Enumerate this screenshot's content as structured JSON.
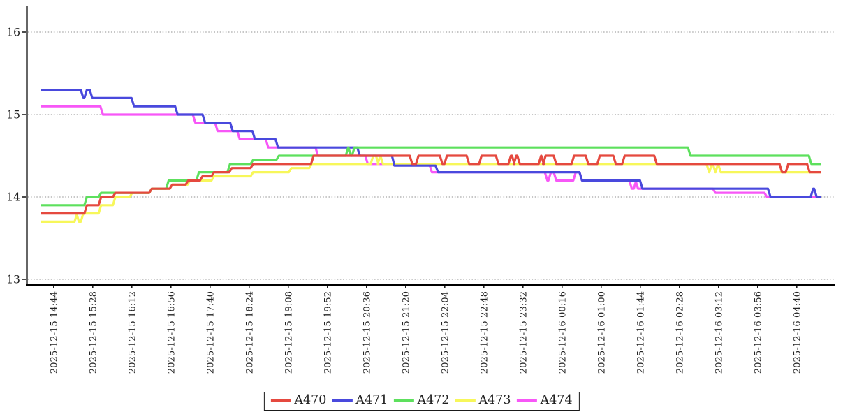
{
  "chart_data": {
    "type": "line",
    "title": "",
    "x_unit": "minutes since first sample (~2025-12-15 14:30)",
    "x_axis": {
      "tick_minutes": [
        14,
        58,
        102,
        146,
        190,
        234,
        278,
        322,
        366,
        410,
        454,
        498,
        542,
        586,
        630,
        674,
        718,
        762,
        806,
        850
      ],
      "tick_labels": [
        "2025-12-15 14:44",
        "2025-12-15 15:28",
        "2025-12-15 16:12",
        "2025-12-15 16:56",
        "2025-12-15 17:40",
        "2025-12-15 18:24",
        "2025-12-15 19:08",
        "2025-12-15 19:52",
        "2025-12-15 20:36",
        "2025-12-15 21:20",
        "2025-12-15 22:04",
        "2025-12-15 22:48",
        "2025-12-15 23:32",
        "2025-12-16 00:16",
        "2025-12-16 01:00",
        "2025-12-16 01:44",
        "2025-12-16 02:28",
        "2025-12-16 03:12",
        "2025-12-16 03:56",
        "2025-12-16 04:40"
      ]
    },
    "y_axis": {
      "ticks": [
        16,
        15,
        14,
        13
      ],
      "min": 12.94,
      "max": 16.31,
      "grid": "dashed"
    },
    "legend_position": "bottom-center",
    "end_minute": 877,
    "draw_order": [
      "A474",
      "A473",
      "A471",
      "A472",
      "A470"
    ],
    "series": [
      {
        "name": "A470",
        "color": "#e5493f",
        "points": [
          [
            0,
            13.8
          ],
          [
            50,
            13.9
          ],
          [
            66,
            14.0
          ],
          [
            82,
            14.05
          ],
          [
            123,
            14.1
          ],
          [
            146,
            14.15
          ],
          [
            164,
            14.2
          ],
          [
            180,
            14.25
          ],
          [
            193,
            14.3
          ],
          [
            213,
            14.35
          ],
          [
            237,
            14.4
          ],
          [
            305,
            14.5
          ],
          [
            416,
            14.4
          ],
          [
            423,
            14.5
          ],
          [
            450,
            14.4
          ],
          [
            455,
            14.5
          ],
          [
            480,
            14.4
          ],
          [
            494,
            14.5
          ],
          [
            513,
            14.4
          ],
          [
            527,
            14.5
          ],
          [
            531,
            14.4
          ],
          [
            533,
            14.5
          ],
          [
            537,
            14.4
          ],
          [
            561,
            14.5
          ],
          [
            564,
            14.4
          ],
          [
            566,
            14.5
          ],
          [
            578,
            14.4
          ],
          [
            598,
            14.5
          ],
          [
            614,
            14.4
          ],
          [
            627,
            14.5
          ],
          [
            645,
            14.4
          ],
          [
            655,
            14.5
          ],
          [
            691,
            14.4
          ],
          [
            832,
            14.3
          ],
          [
            839,
            14.4
          ],
          [
            863,
            14.3
          ]
        ]
      },
      {
        "name": "A471",
        "color": "#4949dd",
        "points": [
          [
            0,
            15.3
          ],
          [
            46,
            15.2
          ],
          [
            50,
            15.3
          ],
          [
            56,
            15.2
          ],
          [
            103,
            15.1
          ],
          [
            152,
            15.0
          ],
          [
            183,
            14.9
          ],
          [
            214,
            14.8
          ],
          [
            239,
            14.7
          ],
          [
            265,
            14.6
          ],
          [
            357,
            14.5
          ],
          [
            396,
            14.38
          ],
          [
            445,
            14.3
          ],
          [
            607,
            14.2
          ],
          [
            675,
            14.1
          ],
          [
            819,
            14.0
          ],
          [
            867,
            14.1
          ],
          [
            871,
            14.0
          ]
        ]
      },
      {
        "name": "A472",
        "color": "#5de05d",
        "points": [
          [
            0,
            13.9
          ],
          [
            50,
            14.0
          ],
          [
            66,
            14.05
          ],
          [
            123,
            14.1
          ],
          [
            142,
            14.2
          ],
          [
            176,
            14.3
          ],
          [
            211,
            14.4
          ],
          [
            237,
            14.45
          ],
          [
            266,
            14.5
          ],
          [
            344,
            14.6
          ],
          [
            347,
            14.5
          ],
          [
            351,
            14.6
          ],
          [
            729,
            14.5
          ],
          [
            865,
            14.4
          ]
        ]
      },
      {
        "name": "A473",
        "color": "#f7f75a",
        "points": [
          [
            0,
            13.7
          ],
          [
            39,
            13.8
          ],
          [
            41,
            13.7
          ],
          [
            46,
            13.8
          ],
          [
            66,
            13.9
          ],
          [
            82,
            14.0
          ],
          [
            101,
            14.05
          ],
          [
            123,
            14.1
          ],
          [
            146,
            14.15
          ],
          [
            166,
            14.2
          ],
          [
            193,
            14.25
          ],
          [
            237,
            14.3
          ],
          [
            280,
            14.35
          ],
          [
            303,
            14.4
          ],
          [
            372,
            14.5
          ],
          [
            378,
            14.4
          ],
          [
            380,
            14.5
          ],
          [
            383,
            14.4
          ],
          [
            750,
            14.3
          ],
          [
            753,
            14.4
          ],
          [
            757,
            14.3
          ],
          [
            760,
            14.4
          ],
          [
            763,
            14.3
          ]
        ]
      },
      {
        "name": "A474",
        "color": "#f757f7",
        "points": [
          [
            0,
            15.1
          ],
          [
            68,
            15.0
          ],
          [
            172,
            14.9
          ],
          [
            197,
            14.8
          ],
          [
            222,
            14.7
          ],
          [
            254,
            14.6
          ],
          [
            310,
            14.5
          ],
          [
            366,
            14.4
          ],
          [
            438,
            14.3
          ],
          [
            568,
            14.2
          ],
          [
            572,
            14.3
          ],
          [
            578,
            14.2
          ],
          [
            600,
            14.3
          ],
          [
            607,
            14.2
          ],
          [
            663,
            14.1
          ],
          [
            668,
            14.2
          ],
          [
            670,
            14.1
          ],
          [
            757,
            14.05
          ],
          [
            815,
            14.0
          ]
        ]
      }
    ]
  }
}
